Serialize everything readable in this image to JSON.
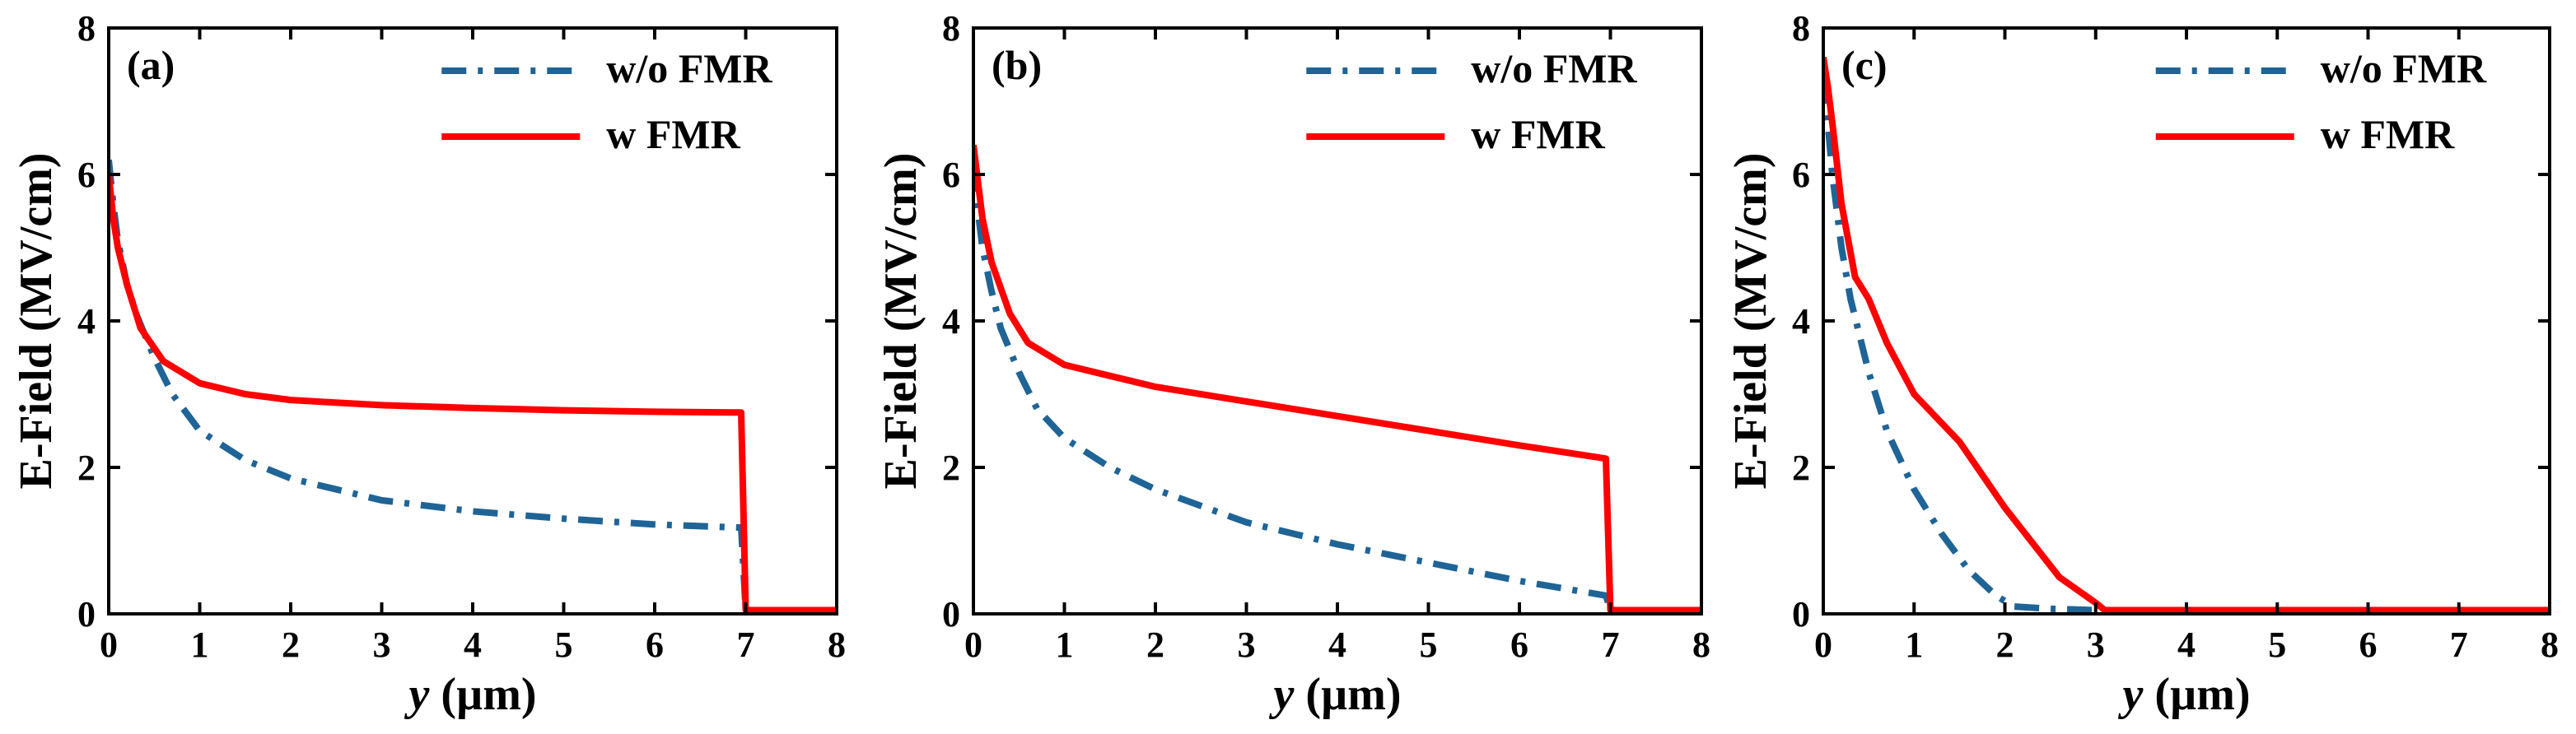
{
  "chart_data": [
    {
      "type": "line",
      "panel_label": "(a)",
      "xlabel_italic": "y",
      "xlabel_rest": " (µm)",
      "ylabel": "E-Field (MV/cm)",
      "xlim": [
        0,
        8
      ],
      "ylim": [
        0,
        8
      ],
      "xticks": [
        "0",
        "1",
        "2",
        "3",
        "4",
        "5",
        "6",
        "7",
        "8"
      ],
      "yticks": [
        "0",
        "2",
        "4",
        "6",
        "8"
      ],
      "legend_position": "top-right",
      "series": [
        {
          "name": "w/o FMR",
          "color": "#1f6496",
          "style": "dashdot",
          "points": [
            [
              0,
              6.2
            ],
            [
              0.05,
              5.6
            ],
            [
              0.1,
              5.1
            ],
            [
              0.2,
              4.5
            ],
            [
              0.3,
              4.1
            ],
            [
              0.5,
              3.5
            ],
            [
              0.7,
              3.0
            ],
            [
              1.0,
              2.5
            ],
            [
              1.5,
              2.1
            ],
            [
              2.0,
              1.85
            ],
            [
              2.5,
              1.7
            ],
            [
              3.0,
              1.55
            ],
            [
              4.0,
              1.4
            ],
            [
              5.0,
              1.3
            ],
            [
              6.0,
              1.22
            ],
            [
              6.9,
              1.18
            ],
            [
              6.95,
              1.18
            ],
            [
              7.0,
              0.05
            ],
            [
              8.0,
              0.05
            ]
          ]
        },
        {
          "name": "w FMR",
          "color": "#ff0000",
          "style": "solid",
          "points": [
            [
              0,
              6.0
            ],
            [
              0.05,
              5.4
            ],
            [
              0.1,
              5.0
            ],
            [
              0.2,
              4.5
            ],
            [
              0.35,
              3.9
            ],
            [
              0.6,
              3.45
            ],
            [
              1.0,
              3.15
            ],
            [
              1.5,
              3.0
            ],
            [
              2.0,
              2.92
            ],
            [
              3.0,
              2.85
            ],
            [
              4.0,
              2.81
            ],
            [
              5.0,
              2.78
            ],
            [
              6.0,
              2.76
            ],
            [
              6.95,
              2.75
            ],
            [
              7.0,
              0.05
            ],
            [
              8.0,
              0.05
            ]
          ]
        }
      ]
    },
    {
      "type": "line",
      "panel_label": "(b)",
      "xlabel_italic": "y",
      "xlabel_rest": " (µm)",
      "ylabel": "E-Field (MV/cm)",
      "xlim": [
        0,
        8
      ],
      "ylim": [
        0,
        8
      ],
      "xticks": [
        "0",
        "1",
        "2",
        "3",
        "4",
        "5",
        "6",
        "7",
        "8"
      ],
      "yticks": [
        "0",
        "2",
        "4",
        "6",
        "8"
      ],
      "legend_position": "top-right",
      "series": [
        {
          "name": "w/o FMR",
          "color": "#1f6496",
          "style": "dashdot",
          "points": [
            [
              0,
              6.1
            ],
            [
              0.05,
              5.5
            ],
            [
              0.1,
              5.0
            ],
            [
              0.2,
              4.4
            ],
            [
              0.3,
              3.9
            ],
            [
              0.5,
              3.3
            ],
            [
              0.7,
              2.8
            ],
            [
              1.0,
              2.4
            ],
            [
              1.5,
              2.0
            ],
            [
              2.0,
              1.7
            ],
            [
              3.0,
              1.25
            ],
            [
              4.0,
              0.95
            ],
            [
              5.0,
              0.7
            ],
            [
              6.0,
              0.45
            ],
            [
              6.95,
              0.25
            ],
            [
              7.0,
              0.05
            ],
            [
              8.0,
              0.05
            ]
          ]
        },
        {
          "name": "w FMR",
          "color": "#ff0000",
          "style": "solid",
          "points": [
            [
              0,
              6.4
            ],
            [
              0.05,
              5.9
            ],
            [
              0.1,
              5.4
            ],
            [
              0.2,
              4.8
            ],
            [
              0.4,
              4.1
            ],
            [
              0.6,
              3.7
            ],
            [
              1.0,
              3.4
            ],
            [
              1.5,
              3.25
            ],
            [
              2.0,
              3.1
            ],
            [
              3.0,
              2.9
            ],
            [
              4.0,
              2.7
            ],
            [
              5.0,
              2.5
            ],
            [
              6.0,
              2.3
            ],
            [
              6.9,
              2.13
            ],
            [
              6.95,
              2.12
            ],
            [
              7.0,
              0.05
            ],
            [
              8.0,
              0.05
            ]
          ]
        }
      ]
    },
    {
      "type": "line",
      "panel_label": "(c)",
      "xlabel_italic": "y",
      "xlabel_rest": " (µm)",
      "ylabel": "E-Field (MV/cm)",
      "xlim": [
        0,
        8
      ],
      "ylim": [
        0,
        8
      ],
      "xticks": [
        "0",
        "1",
        "2",
        "3",
        "4",
        "5",
        "6",
        "7",
        "8"
      ],
      "yticks": [
        "0",
        "2",
        "4",
        "6",
        "8"
      ],
      "legend_position": "top-right",
      "series": [
        {
          "name": "w/o FMR",
          "color": "#1f6496",
          "style": "dashdot",
          "points": [
            [
              0,
              7.3
            ],
            [
              0.05,
              6.7
            ],
            [
              0.1,
              6.0
            ],
            [
              0.2,
              5.0
            ],
            [
              0.3,
              4.3
            ],
            [
              0.5,
              3.3
            ],
            [
              0.7,
              2.5
            ],
            [
              1.0,
              1.7
            ],
            [
              1.3,
              1.1
            ],
            [
              1.6,
              0.6
            ],
            [
              1.9,
              0.25
            ],
            [
              2.1,
              0.1
            ],
            [
              2.5,
              0.07
            ],
            [
              3.0,
              0.05
            ],
            [
              8.0,
              0.05
            ]
          ]
        },
        {
          "name": "w FMR",
          "color": "#ff0000",
          "style": "solid",
          "points": [
            [
              0,
              7.6
            ],
            [
              0.05,
              7.2
            ],
            [
              0.1,
              6.7
            ],
            [
              0.2,
              5.6
            ],
            [
              0.35,
              4.6
            ],
            [
              0.5,
              4.3
            ],
            [
              0.7,
              3.7
            ],
            [
              1.0,
              3.0
            ],
            [
              1.5,
              2.35
            ],
            [
              2.0,
              1.45
            ],
            [
              2.6,
              0.5
            ],
            [
              3.0,
              0.15
            ],
            [
              3.1,
              0.05
            ],
            [
              8.0,
              0.05
            ]
          ]
        }
      ]
    }
  ]
}
